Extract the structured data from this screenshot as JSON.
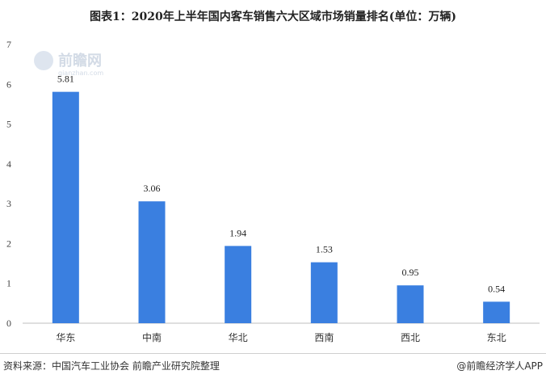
{
  "chart_data": {
    "type": "bar",
    "title": "图表1：2020年上半年国内客车销售六大区域市场销量排名(单位：万辆)",
    "categories": [
      "华东",
      "中南",
      "华北",
      "西南",
      "西北",
      "东北"
    ],
    "values": [
      5.81,
      3.06,
      1.94,
      1.53,
      0.95,
      0.54
    ],
    "value_labels": [
      "5.81",
      "3.06",
      "1.94",
      "1.53",
      "0.95",
      "0.54"
    ],
    "ylim": [
      0,
      7
    ],
    "yticks": [
      0,
      1,
      2,
      3,
      4,
      5,
      6,
      7
    ],
    "grid": false,
    "bar_color": "#3a7fe0"
  },
  "watermark": {
    "name": "前瞻网",
    "domain": "qianzhan.com"
  },
  "footer": {
    "source": "资料来源：中国汽车工业协会 前瞻产业研究院整理",
    "credit": "@前瞻经济学人APP"
  }
}
